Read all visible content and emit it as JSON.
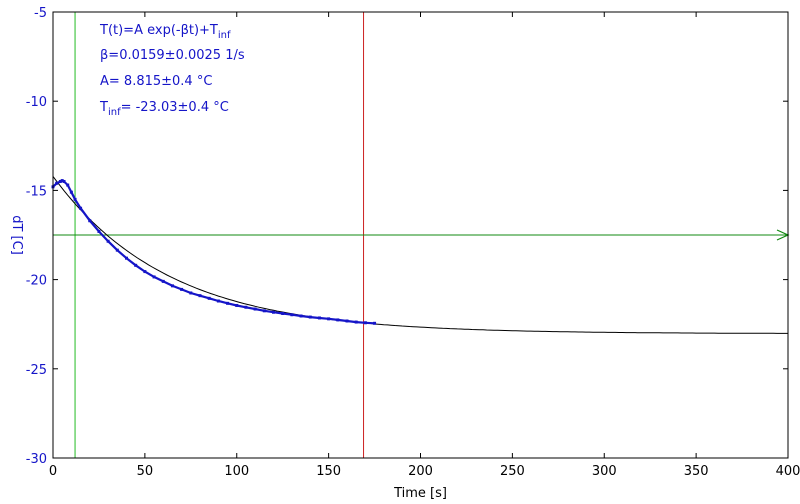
{
  "chart_data": {
    "type": "scatter",
    "xlabel": "Time [s]",
    "ylabel": "dT [C]",
    "xlim": [
      0,
      400
    ],
    "ylim": [
      -30,
      -5
    ],
    "x_ticks": [
      0,
      50,
      100,
      150,
      200,
      250,
      300,
      350,
      400
    ],
    "y_ticks": [
      -5,
      -10,
      -15,
      -20,
      -25,
      -30
    ],
    "grid": false,
    "colors": {
      "data": "#1515c8",
      "fit": "#000000",
      "axis_labels": "#1515c8",
      "cursor_green": "#22bb22",
      "cursor_red": "#cc2222",
      "baseline": "#118811"
    },
    "annotations": {
      "formula_main": "T(t)=A exp(-βt)+T",
      "formula_sub": "inf",
      "beta": "β=0.0159±0.0025 1/s",
      "amp": "A= 8.815±0.4 °C",
      "tinf_prefix": "T",
      "tinf_sub": "inf",
      "tinf_rest": "= -23.03±0.4 °C"
    },
    "fit": {
      "A": 8.815,
      "beta": 0.0159,
      "T_inf": -23.03,
      "t_start": 0,
      "t_end": 400
    },
    "series": [
      {
        "x": [
          0,
          2,
          4,
          5,
          6,
          8,
          10,
          12,
          15,
          20,
          25,
          30,
          35,
          40,
          45,
          50,
          55,
          60,
          65,
          70,
          75,
          80,
          85,
          90,
          95,
          100,
          105,
          110,
          115,
          120,
          125,
          130,
          135,
          140,
          145,
          150,
          155,
          160,
          165,
          170,
          175
        ],
        "values": [
          -14.8,
          -14.6,
          -14.5,
          -14.45,
          -14.5,
          -14.7,
          -15.1,
          -15.5,
          -16.0,
          -16.7,
          -17.3,
          -17.85,
          -18.35,
          -18.8,
          -19.2,
          -19.55,
          -19.85,
          -20.1,
          -20.35,
          -20.55,
          -20.75,
          -20.9,
          -21.05,
          -21.2,
          -21.33,
          -21.45,
          -21.55,
          -21.65,
          -21.75,
          -21.83,
          -21.9,
          -21.97,
          -22.04,
          -22.1,
          -22.15,
          -22.2,
          -22.26,
          -22.32,
          -22.38,
          -22.42,
          -22.45
        ]
      }
    ],
    "cursors": [
      {
        "type": "vertical",
        "x": 12,
        "color": "#22bb22"
      },
      {
        "type": "vertical",
        "x": 169,
        "color": "#cc2222"
      },
      {
        "type": "horizontal",
        "y": -17.5,
        "color": "#118811"
      }
    ]
  }
}
